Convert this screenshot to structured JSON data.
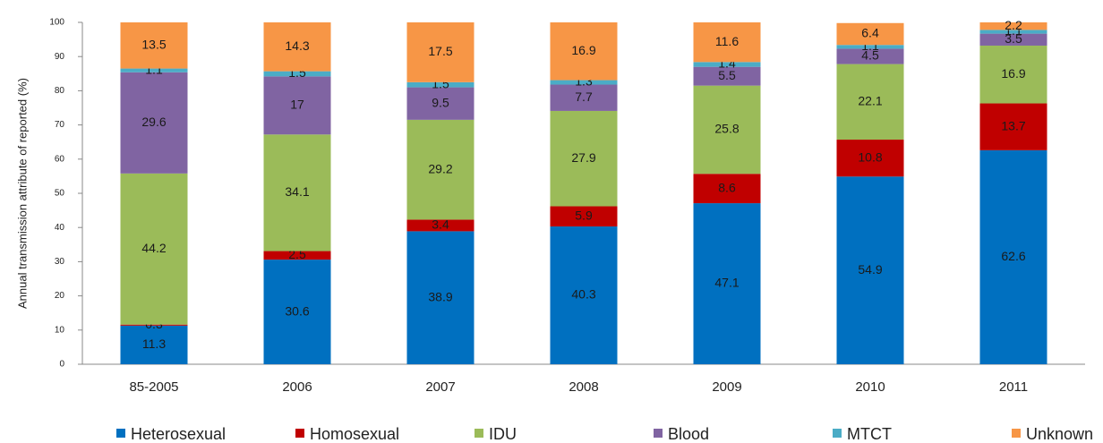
{
  "chart_data": {
    "type": "stacked_bar",
    "y_label": "Annual transmission attribute of reported (%)",
    "categories": [
      "85-2005",
      "2006",
      "2007",
      "2008",
      "2009",
      "2010",
      "2011"
    ],
    "series": [
      {
        "name": "Heterosexual",
        "color": "#0070c0",
        "values": [
          11.3,
          30.6,
          38.9,
          40.3,
          47.1,
          54.9,
          62.6
        ]
      },
      {
        "name": "Homosexual",
        "color": "#c00000",
        "values": [
          0.3,
          2.5,
          3.4,
          5.9,
          8.6,
          10.8,
          13.7
        ]
      },
      {
        "name": "IDU",
        "color": "#9bbb59",
        "values": [
          44.2,
          34.1,
          29.2,
          27.9,
          25.8,
          22.1,
          16.9
        ]
      },
      {
        "name": "Blood",
        "color": "#8064a2",
        "values": [
          29.6,
          17,
          9.5,
          7.7,
          5.5,
          4.5,
          3.5
        ]
      },
      {
        "name": "MTCT",
        "color": "#4bacc6",
        "values": [
          1.1,
          1.5,
          1.5,
          1.3,
          1.4,
          1.1,
          1.1
        ]
      },
      {
        "name": "Unknown",
        "color": "#f79646",
        "values": [
          13.5,
          14.3,
          17.5,
          16.9,
          11.6,
          6.4,
          2.2
        ]
      }
    ],
    "ylim": [
      0,
      100
    ],
    "yticks": [
      0,
      10,
      20,
      30,
      40,
      50,
      60,
      70,
      80,
      90,
      100
    ],
    "legend": "bottom"
  }
}
